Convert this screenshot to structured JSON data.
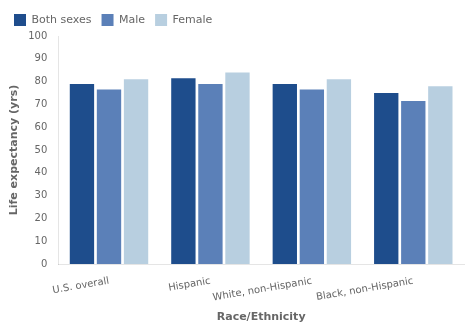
{
  "chart_data": {
    "type": "bar",
    "categories": [
      "U.S. overall",
      "Hispanic",
      "White, non-Hispanic",
      "Black, non-Hispanic"
    ],
    "series": [
      {
        "name": "Both sexes",
        "color": "#1e4d8c",
        "values": [
          79,
          81.5,
          79,
          75
        ]
      },
      {
        "name": "Male",
        "color": "#5b80b8",
        "values": [
          76.5,
          79,
          76.5,
          71.5
        ]
      },
      {
        "name": "Female",
        "color": "#b8cfe0",
        "values": [
          81,
          84,
          81,
          78
        ]
      }
    ],
    "xlabel": "Race/Ethnicity",
    "ylabel": "Life expectancy (yrs)",
    "ylim": [
      0,
      100
    ],
    "yticks": [
      0,
      10,
      20,
      30,
      40,
      50,
      60,
      70,
      80,
      90,
      100
    ],
    "grid": false,
    "legend": "upper left"
  }
}
